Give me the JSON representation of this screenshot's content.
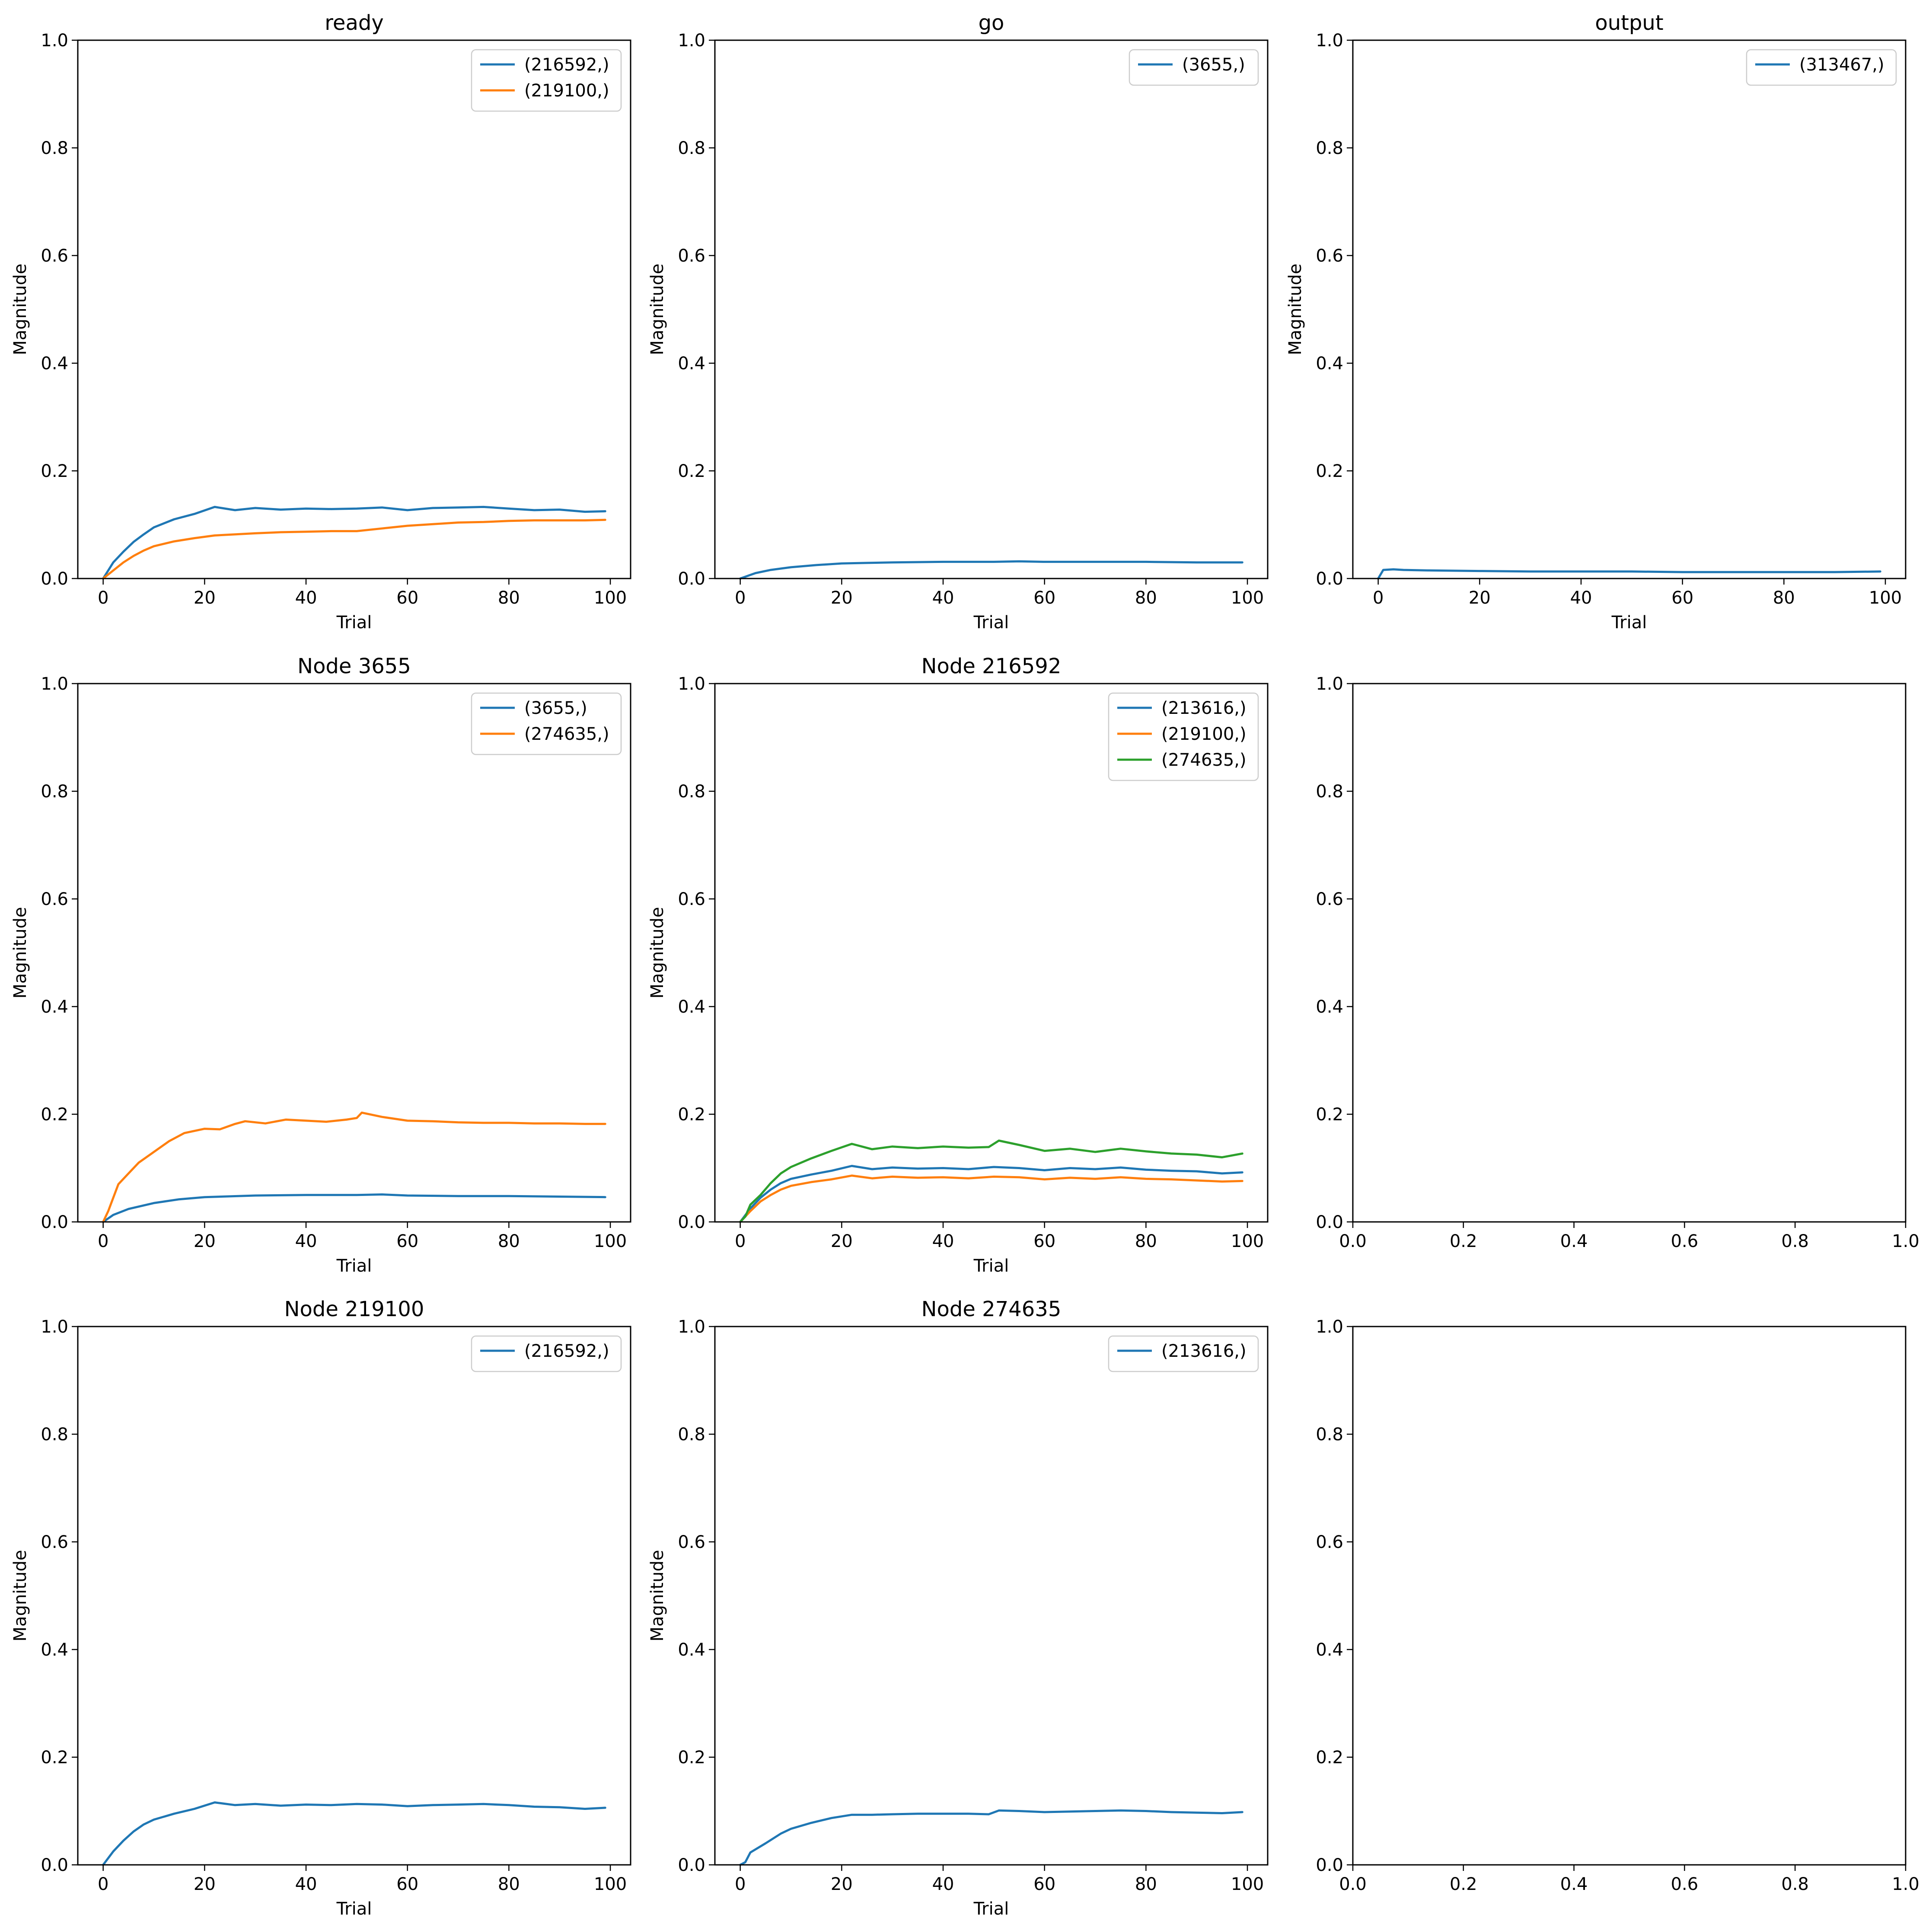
{
  "chart_data": [
    {
      "type": "line",
      "title": "ready",
      "xlabel": "Trial",
      "ylabel": "Magnitude",
      "xlim": [
        -5,
        104
      ],
      "ylim": [
        0,
        1
      ],
      "xticks": [
        0,
        20,
        40,
        60,
        80,
        100
      ],
      "yticks": [
        0.0,
        0.2,
        0.4,
        0.6,
        0.8,
        1.0
      ],
      "grid": false,
      "legend": "top-right",
      "series": [
        {
          "name": "(216592,)",
          "color": "#1f77b4",
          "x": [
            0,
            2,
            4,
            6,
            8,
            10,
            14,
            18,
            22,
            26,
            30,
            35,
            40,
            45,
            50,
            55,
            60,
            65,
            70,
            75,
            80,
            85,
            90,
            95,
            99
          ],
          "y": [
            0,
            0.03,
            0.05,
            0.068,
            0.082,
            0.095,
            0.11,
            0.12,
            0.133,
            0.127,
            0.131,
            0.128,
            0.13,
            0.129,
            0.13,
            0.132,
            0.127,
            0.131,
            0.132,
            0.133,
            0.13,
            0.127,
            0.128,
            0.124,
            0.125
          ]
        },
        {
          "name": "(219100,)",
          "color": "#ff7f0e",
          "x": [
            0,
            2,
            4,
            6,
            8,
            10,
            14,
            18,
            22,
            26,
            30,
            35,
            40,
            45,
            50,
            55,
            60,
            65,
            70,
            75,
            80,
            85,
            90,
            95,
            99
          ],
          "y": [
            0,
            0.015,
            0.03,
            0.042,
            0.052,
            0.06,
            0.069,
            0.075,
            0.08,
            0.082,
            0.084,
            0.086,
            0.087,
            0.088,
            0.088,
            0.093,
            0.098,
            0.101,
            0.104,
            0.105,
            0.107,
            0.108,
            0.108,
            0.108,
            0.109
          ]
        }
      ]
    },
    {
      "type": "line",
      "title": "go",
      "xlabel": "Trial",
      "ylabel": "Magnitude",
      "xlim": [
        -5,
        104
      ],
      "ylim": [
        0,
        1
      ],
      "xticks": [
        0,
        20,
        40,
        60,
        80,
        100
      ],
      "yticks": [
        0.0,
        0.2,
        0.4,
        0.6,
        0.8,
        1.0
      ],
      "grid": false,
      "legend": "top-right",
      "series": [
        {
          "name": "(3655,)",
          "color": "#1f77b4",
          "x": [
            0,
            3,
            6,
            10,
            15,
            20,
            25,
            30,
            40,
            50,
            55,
            60,
            70,
            80,
            90,
            99
          ],
          "y": [
            0,
            0.01,
            0.016,
            0.021,
            0.025,
            0.028,
            0.029,
            0.03,
            0.031,
            0.031,
            0.032,
            0.031,
            0.031,
            0.031,
            0.03,
            0.03
          ]
        }
      ]
    },
    {
      "type": "line",
      "title": "output",
      "xlabel": "Trial",
      "ylabel": "Magnitude",
      "xlim": [
        -5,
        104
      ],
      "ylim": [
        0,
        1
      ],
      "xticks": [
        0,
        20,
        40,
        60,
        80,
        100
      ],
      "yticks": [
        0.0,
        0.2,
        0.4,
        0.6,
        0.8,
        1.0
      ],
      "grid": false,
      "legend": "top-right",
      "series": [
        {
          "name": "(313467,)",
          "color": "#1f77b4",
          "x": [
            0,
            1,
            3,
            5,
            10,
            20,
            30,
            40,
            50,
            60,
            70,
            80,
            90,
            99
          ],
          "y": [
            0,
            0.016,
            0.017,
            0.016,
            0.015,
            0.014,
            0.013,
            0.013,
            0.013,
            0.012,
            0.012,
            0.012,
            0.012,
            0.013
          ]
        }
      ]
    },
    {
      "type": "line",
      "title": "Node 3655",
      "xlabel": "Trial",
      "ylabel": "Magnitude",
      "xlim": [
        -5,
        104
      ],
      "ylim": [
        0,
        1
      ],
      "xticks": [
        0,
        20,
        40,
        60,
        80,
        100
      ],
      "yticks": [
        0.0,
        0.2,
        0.4,
        0.6,
        0.8,
        1.0
      ],
      "grid": false,
      "legend": "top-right",
      "series": [
        {
          "name": "(3655,)",
          "color": "#1f77b4",
          "x": [
            0,
            2,
            5,
            10,
            15,
            20,
            30,
            40,
            50,
            55,
            60,
            70,
            80,
            90,
            99
          ],
          "y": [
            0,
            0.013,
            0.024,
            0.035,
            0.042,
            0.046,
            0.049,
            0.05,
            0.05,
            0.051,
            0.049,
            0.048,
            0.048,
            0.047,
            0.046
          ]
        },
        {
          "name": "(274635,)",
          "color": "#ff7f0e",
          "x": [
            0,
            1,
            2,
            3,
            5,
            7,
            10,
            13,
            16,
            20,
            23,
            26,
            28,
            32,
            36,
            40,
            44,
            48,
            50,
            51,
            55,
            60,
            65,
            70,
            75,
            80,
            85,
            90,
            95,
            99
          ],
          "y": [
            0,
            0.02,
            0.045,
            0.07,
            0.09,
            0.11,
            0.13,
            0.15,
            0.165,
            0.173,
            0.172,
            0.182,
            0.187,
            0.183,
            0.19,
            0.188,
            0.186,
            0.19,
            0.193,
            0.203,
            0.195,
            0.188,
            0.187,
            0.185,
            0.184,
            0.184,
            0.183,
            0.183,
            0.182,
            0.182
          ]
        }
      ]
    },
    {
      "type": "line",
      "title": "Node 216592",
      "xlabel": "Trial",
      "ylabel": "Magnitude",
      "xlim": [
        -5,
        104
      ],
      "ylim": [
        0,
        1
      ],
      "xticks": [
        0,
        20,
        40,
        60,
        80,
        100
      ],
      "yticks": [
        0.0,
        0.2,
        0.4,
        0.6,
        0.8,
        1.0
      ],
      "grid": false,
      "legend": "top-right",
      "series": [
        {
          "name": "(213616,)",
          "color": "#1f77b4",
          "x": [
            0,
            2,
            4,
            6,
            8,
            10,
            14,
            18,
            22,
            26,
            30,
            35,
            40,
            45,
            50,
            55,
            60,
            65,
            70,
            75,
            80,
            85,
            90,
            95,
            99
          ],
          "y": [
            0,
            0.025,
            0.045,
            0.06,
            0.072,
            0.08,
            0.088,
            0.095,
            0.104,
            0.098,
            0.101,
            0.099,
            0.1,
            0.098,
            0.102,
            0.1,
            0.096,
            0.1,
            0.098,
            0.101,
            0.097,
            0.095,
            0.094,
            0.09,
            0.092
          ]
        },
        {
          "name": "(219100,)",
          "color": "#ff7f0e",
          "x": [
            0,
            2,
            4,
            6,
            8,
            10,
            14,
            18,
            22,
            26,
            30,
            35,
            40,
            45,
            50,
            55,
            60,
            65,
            70,
            75,
            80,
            85,
            90,
            95,
            99
          ],
          "y": [
            0,
            0.02,
            0.038,
            0.05,
            0.06,
            0.067,
            0.074,
            0.079,
            0.086,
            0.081,
            0.084,
            0.082,
            0.083,
            0.081,
            0.084,
            0.083,
            0.079,
            0.082,
            0.08,
            0.083,
            0.08,
            0.079,
            0.077,
            0.075,
            0.076
          ]
        },
        {
          "name": "(274635,)",
          "color": "#2ca02c",
          "x": [
            0,
            1,
            2,
            4,
            6,
            8,
            10,
            14,
            18,
            22,
            26,
            30,
            35,
            40,
            45,
            49,
            51,
            55,
            60,
            65,
            70,
            75,
            80,
            85,
            90,
            95,
            99
          ],
          "y": [
            0,
            0.01,
            0.032,
            0.05,
            0.072,
            0.09,
            0.102,
            0.118,
            0.132,
            0.145,
            0.135,
            0.14,
            0.137,
            0.14,
            0.138,
            0.139,
            0.151,
            0.143,
            0.132,
            0.136,
            0.13,
            0.136,
            0.131,
            0.127,
            0.125,
            0.12,
            0.127
          ]
        }
      ]
    },
    {
      "type": "line",
      "title": "",
      "xlabel": "",
      "ylabel": "",
      "xlim": [
        0,
        1
      ],
      "ylim": [
        0,
        1
      ],
      "xticks": [
        0.0,
        0.2,
        0.4,
        0.6,
        0.8,
        1.0
      ],
      "yticks": [
        0.0,
        0.2,
        0.4,
        0.6,
        0.8,
        1.0
      ],
      "grid": false,
      "legend": "none",
      "series": []
    },
    {
      "type": "line",
      "title": "Node 219100",
      "xlabel": "Trial",
      "ylabel": "Magnitude",
      "xlim": [
        -5,
        104
      ],
      "ylim": [
        0,
        1
      ],
      "xticks": [
        0,
        20,
        40,
        60,
        80,
        100
      ],
      "yticks": [
        0.0,
        0.2,
        0.4,
        0.6,
        0.8,
        1.0
      ],
      "grid": false,
      "legend": "top-right",
      "series": [
        {
          "name": "(216592,)",
          "color": "#1f77b4",
          "x": [
            0,
            2,
            4,
            6,
            8,
            10,
            14,
            18,
            22,
            26,
            30,
            35,
            40,
            45,
            50,
            55,
            60,
            65,
            70,
            75,
            80,
            85,
            90,
            95,
            99
          ],
          "y": [
            0,
            0.025,
            0.045,
            0.062,
            0.075,
            0.084,
            0.095,
            0.104,
            0.116,
            0.111,
            0.113,
            0.11,
            0.112,
            0.111,
            0.113,
            0.112,
            0.109,
            0.111,
            0.112,
            0.113,
            0.111,
            0.108,
            0.107,
            0.104,
            0.106
          ]
        }
      ]
    },
    {
      "type": "line",
      "title": "Node 274635",
      "xlabel": "Trial",
      "ylabel": "Magnitude",
      "xlim": [
        -5,
        104
      ],
      "ylim": [
        0,
        1
      ],
      "xticks": [
        0,
        20,
        40,
        60,
        80,
        100
      ],
      "yticks": [
        0.0,
        0.2,
        0.4,
        0.6,
        0.8,
        1.0
      ],
      "grid": false,
      "legend": "top-right",
      "series": [
        {
          "name": "(213616,)",
          "color": "#1f77b4",
          "x": [
            0,
            1,
            2,
            5,
            8,
            10,
            14,
            18,
            22,
            26,
            30,
            35,
            40,
            45,
            49,
            51,
            55,
            60,
            65,
            70,
            75,
            80,
            85,
            90,
            95,
            99
          ],
          "y": [
            0,
            0.005,
            0.023,
            0.04,
            0.058,
            0.067,
            0.078,
            0.087,
            0.093,
            0.093,
            0.094,
            0.095,
            0.095,
            0.095,
            0.094,
            0.101,
            0.1,
            0.098,
            0.099,
            0.1,
            0.101,
            0.1,
            0.098,
            0.097,
            0.096,
            0.098
          ]
        }
      ]
    },
    {
      "type": "line",
      "title": "",
      "xlabel": "",
      "ylabel": "",
      "xlim": [
        0,
        1
      ],
      "ylim": [
        0,
        1
      ],
      "xticks": [
        0.0,
        0.2,
        0.4,
        0.6,
        0.8,
        1.0
      ],
      "yticks": [
        0.0,
        0.2,
        0.4,
        0.6,
        0.8,
        1.0
      ],
      "grid": false,
      "legend": "none",
      "series": []
    }
  ]
}
